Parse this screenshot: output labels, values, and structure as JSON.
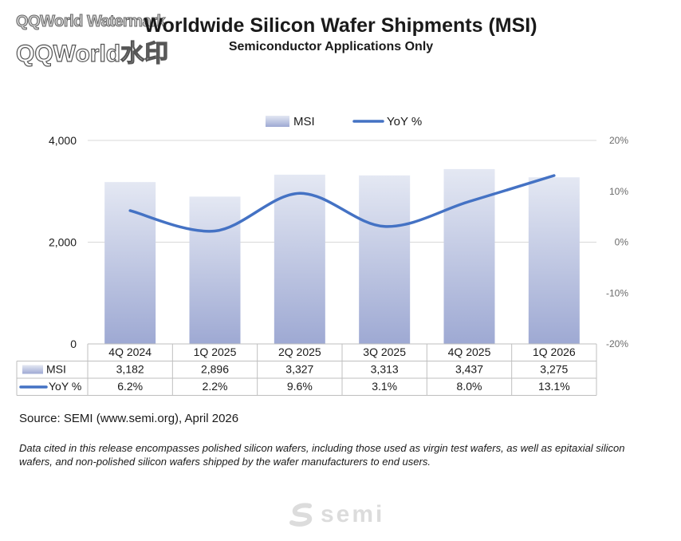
{
  "watermark": {
    "line1": "QQWorld Watermark",
    "line2": "QQWorld水印"
  },
  "header": {
    "title": "Worldwide Silicon Wafer Shipments (MSI)",
    "subtitle": "Semiconductor Applications Only"
  },
  "chart_data": {
    "type": "bar",
    "categories": [
      "4Q 2024",
      "1Q 2025",
      "2Q 2025",
      "3Q 2025",
      "4Q 2025",
      "1Q 2026"
    ],
    "series": [
      {
        "name": "MSI",
        "type": "bar",
        "axis": "left",
        "values": [
          3182,
          2896,
          3327,
          3313,
          3437,
          3275
        ],
        "labels": [
          "3,182",
          "2,896",
          "3,327",
          "3,313",
          "3,437",
          "3,275"
        ]
      },
      {
        "name": "YoY %",
        "type": "line",
        "axis": "right",
        "values": [
          6.2,
          2.2,
          9.6,
          3.1,
          8.0,
          13.1
        ],
        "labels": [
          "6.2%",
          "2.2%",
          "9.6%",
          "3.1%",
          "8.0%",
          "13.1%"
        ]
      }
    ],
    "y_left": {
      "min": 0,
      "max": 4000,
      "ticks": [
        0,
        2000,
        4000
      ],
      "tick_labels": [
        "0",
        "2,000",
        "4,000"
      ]
    },
    "y_right": {
      "min": -20,
      "max": 20,
      "ticks": [
        -20,
        -10,
        0,
        10,
        20
      ],
      "tick_labels": [
        "-20%",
        "-10%",
        "0%",
        "10%",
        "20%"
      ]
    },
    "legend_position": "top",
    "gridlines": true,
    "data_table": true,
    "colors": {
      "bar_top": "#e4e8f3",
      "bar_bottom": "#9ea9d3",
      "line": "#4472c4",
      "grid": "#d9d9d9"
    }
  },
  "footer": {
    "source": "Source: SEMI (www.semi.org), April 2026",
    "note": "Data cited in this release encompasses polished silicon wafers, including those used as virgin test wafers, as well as epitaxial silicon wafers, and non-polished silicon wafers shipped by the wafer manufacturers to end users.",
    "logo_text": "semi"
  }
}
